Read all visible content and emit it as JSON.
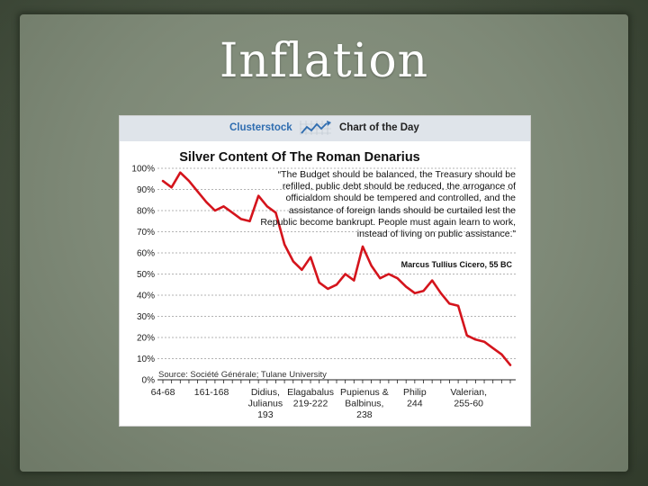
{
  "slide": {
    "title": "Inflation"
  },
  "header": {
    "brand": "Clusterstock",
    "brand_icon": "trend-line-icon",
    "section": "Chart of the Day"
  },
  "quote": {
    "text": "“The Budget should be balanced, the Treasury should be refilled, public debt should be reduced, the arrogance of officialdom should be tempered and controlled, and the assistance of foreign lands should be curtailed lest the Republic become bankrupt. People must again learn to work, instead of living on public assistance.”",
    "author": "Marcus Tullius Cicero, 55 BC"
  },
  "source": "Source: Société Générale; Tulane University",
  "colors": {
    "line": "#d4141c",
    "header_bg": "#dfe4ea",
    "brand_blue": "#2f6db0",
    "slide_bg": "#7e8977"
  },
  "chart_data": {
    "type": "line",
    "title": "Silver Content Of The Roman Denarius",
    "xlabel": "",
    "ylabel": "",
    "ylim": [
      0,
      100
    ],
    "grid": true,
    "y_ticks": [
      "0%",
      "10%",
      "20%",
      "30%",
      "40%",
      "50%",
      "60%",
      "70%",
      "80%",
      "90%",
      "100%"
    ],
    "x_ticks": [
      {
        "index": 0,
        "label": [
          "64-68"
        ]
      },
      {
        "index": 3,
        "label": [
          "161-168"
        ]
      },
      {
        "index": 6,
        "label": [
          "Didius,",
          "Julianus",
          "193"
        ]
      },
      {
        "index": 9,
        "label": [
          "Elagabalus",
          "219-222"
        ]
      },
      {
        "index": 12,
        "label": [
          "Pupienus &",
          "Balbinus,",
          "238"
        ]
      },
      {
        "index": 15,
        "label": [
          "Philip",
          "244"
        ]
      },
      {
        "index": 18,
        "label": [
          "Valerian,",
          "255-60"
        ]
      }
    ],
    "series": [
      {
        "values": [
          94,
          91,
          98,
          94,
          89,
          84,
          80,
          82,
          79,
          76,
          75,
          87,
          82,
          79,
          64,
          56,
          52,
          58,
          46,
          43,
          45,
          50,
          47,
          63,
          54,
          48,
          50,
          48,
          44,
          41,
          42,
          47,
          41,
          36,
          35,
          21,
          19,
          18,
          15,
          12,
          7
        ]
      }
    ]
  }
}
